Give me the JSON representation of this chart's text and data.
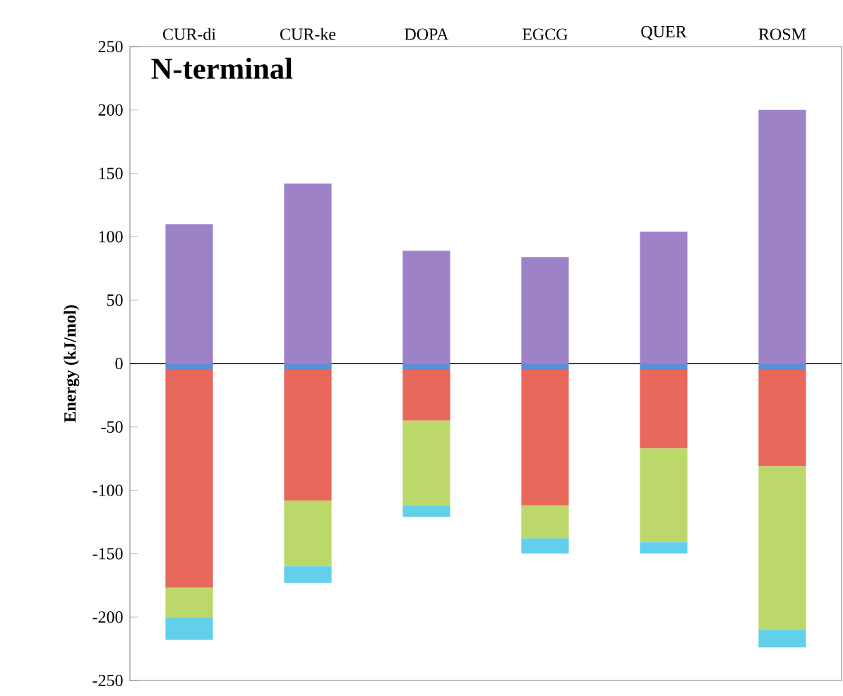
{
  "chart_data": {
    "type": "bar",
    "stacked": true,
    "title": "N-terminal",
    "ylabel": "Energy (kJ/mol)",
    "categories": [
      "CUR-di",
      "CUR-ke",
      "DOPA",
      "EGCG",
      "QUER",
      "ROSM"
    ],
    "series": [
      {
        "color": "#9d82c8",
        "values": [
          110,
          142,
          89,
          84,
          104,
          200
        ]
      },
      {
        "color": "#5b8fd6",
        "values": [
          -5,
          -5,
          -5,
          -5,
          -5,
          -5
        ]
      },
      {
        "color": "#e8685c",
        "values": [
          -172,
          -103,
          -40,
          -107,
          -62,
          -76
        ]
      },
      {
        "color": "#bcd86a",
        "values": [
          -23,
          -52,
          -67,
          -26,
          -74,
          -129
        ]
      },
      {
        "color": "#62d0ea",
        "values": [
          -18,
          -13,
          -9,
          -12,
          -9,
          -14
        ]
      }
    ],
    "ylim": [
      -250,
      250
    ],
    "yticks": [
      -250,
      -200,
      -150,
      -100,
      -50,
      0,
      50,
      100,
      150,
      200,
      250
    ]
  }
}
